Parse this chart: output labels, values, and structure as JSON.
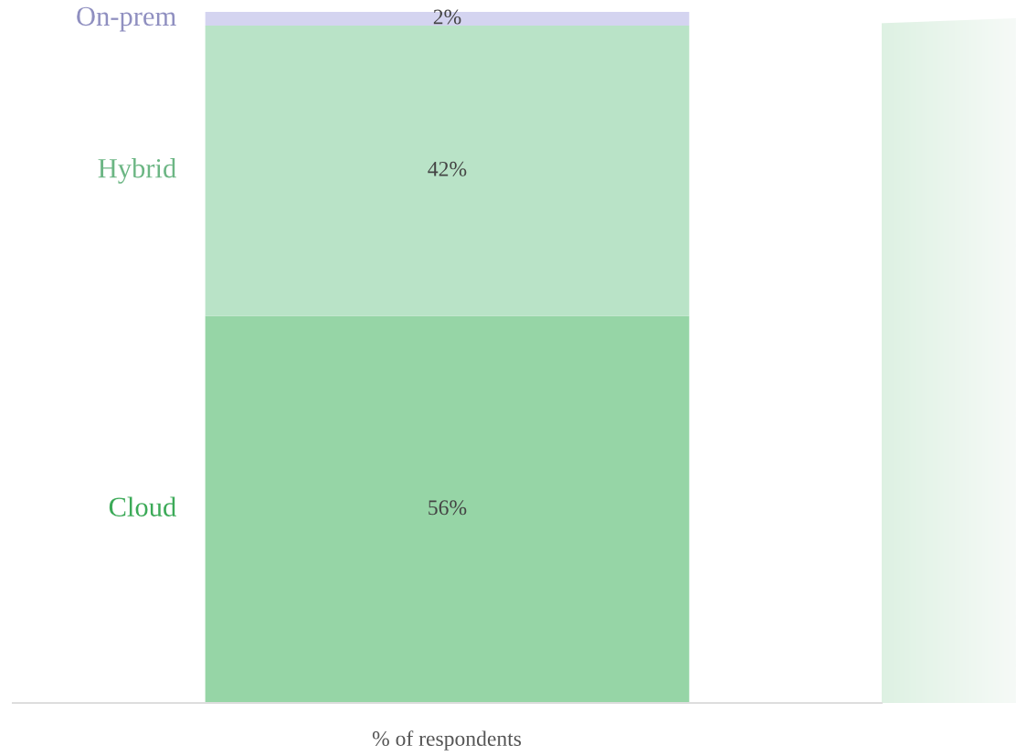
{
  "chart_data": {
    "type": "bar",
    "stacked": true,
    "categories": [
      null
    ],
    "series": [
      {
        "name": "Cloud",
        "color": "#96d5a6",
        "values": [
          56
        ],
        "value_labels": [
          "56%"
        ]
      },
      {
        "name": "Hybrid",
        "color": "#b9e3c7",
        "values": [
          42
        ],
        "value_labels": [
          "42%"
        ]
      },
      {
        "name": "On-prem",
        "color": "#d4d4f0",
        "values": [
          2
        ],
        "value_labels": [
          "2%"
        ]
      }
    ],
    "xlabel": "% of respondents",
    "legend": false,
    "grid": false
  }
}
